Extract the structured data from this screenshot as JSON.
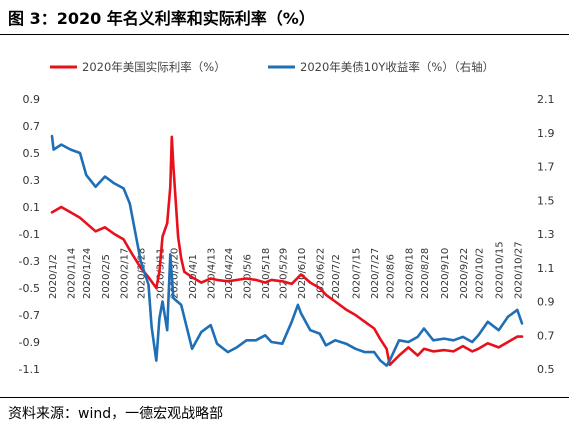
{
  "header": {
    "title": "图 3：2020 年名义利率和实际利率（%）"
  },
  "footer": {
    "source": "资料来源：wind，一德宏观战略部"
  },
  "colors": {
    "real_rate": "#e8101a",
    "nominal_rate": "#1f6fb6"
  },
  "chart_data": {
    "type": "line",
    "legend": {
      "placement": "top",
      "entries": [
        "2020年美国实际利率（%）",
        "2020年美债10Y收益率（%）（右轴）"
      ]
    },
    "x_ticks": [
      "2020/1/2",
      "2020/1/14",
      "2020/1/24",
      "2020/2/5",
      "2020/2/17",
      "2020/2/28",
      "2020/3/11",
      "2020/3/20",
      "2020/4/1",
      "2020/4/13",
      "2020/4/24",
      "2020/5/6",
      "2020/5/18",
      "2020/5/29",
      "2020/6/10",
      "2020/6/22",
      "2020/7/2",
      "2020/7/15",
      "2020/7/27",
      "2020/8/6",
      "2020/8/18",
      "2020/8/28",
      "2020/9/10",
      "2020/9/22",
      "2020/10/2",
      "2020/10/15",
      "2020/10/27"
    ],
    "y_left": {
      "ticks": [
        "0.9",
        "0.7",
        "0.5",
        "0.3",
        "0.1",
        "-0.1",
        "-0.3",
        "-0.5",
        "-0.7",
        "-0.9",
        "-1.1"
      ],
      "range": [
        -1.1,
        0.9
      ]
    },
    "y_right": {
      "ticks": [
        "2.1",
        "1.9",
        "1.7",
        "1.5",
        "1.3",
        "1.1",
        "0.9",
        "0.7",
        "0.5"
      ],
      "range": [
        0.5,
        2.1
      ]
    },
    "series": [
      {
        "name": "2020年美国实际利率（%）",
        "axis": "left",
        "x": [
          "2020/1/2",
          "2020/1/8",
          "2020/1/14",
          "2020/1/20",
          "2020/1/24",
          "2020/1/30",
          "2020/2/5",
          "2020/2/11",
          "2020/2/17",
          "2020/2/21",
          "2020/2/28",
          "2020/3/4",
          "2020/3/9",
          "2020/3/11",
          "2020/3/13",
          "2020/3/16",
          "2020/3/18",
          "2020/3/19",
          "2020/3/20",
          "2020/3/23",
          "2020/3/25",
          "2020/3/27",
          "2020/4/1",
          "2020/4/7",
          "2020/4/13",
          "2020/4/17",
          "2020/4/24",
          "2020/4/30",
          "2020/5/6",
          "2020/5/12",
          "2020/5/18",
          "2020/5/22",
          "2020/5/29",
          "2020/6/4",
          "2020/6/10",
          "2020/6/16",
          "2020/6/22",
          "2020/6/26",
          "2020/7/2",
          "2020/7/9",
          "2020/7/15",
          "2020/7/21",
          "2020/7/27",
          "2020/7/31",
          "2020/8/4",
          "2020/8/6",
          "2020/8/12",
          "2020/8/18",
          "2020/8/24",
          "2020/8/28",
          "2020/9/3",
          "2020/9/10",
          "2020/9/16",
          "2020/9/22",
          "2020/9/28",
          "2020/10/2",
          "2020/10/8",
          "2020/10/15",
          "2020/10/21",
          "2020/10/27",
          "2020/10/30"
        ],
        "values": [
          0.06,
          0.1,
          0.06,
          0.02,
          -0.02,
          -0.08,
          -0.05,
          -0.1,
          -0.14,
          -0.22,
          -0.35,
          -0.42,
          -0.5,
          -0.38,
          -0.12,
          -0.02,
          0.25,
          0.62,
          0.4,
          -0.12,
          -0.28,
          -0.38,
          -0.42,
          -0.46,
          -0.43,
          -0.44,
          -0.45,
          -0.44,
          -0.43,
          -0.44,
          -0.46,
          -0.44,
          -0.45,
          -0.47,
          -0.4,
          -0.46,
          -0.5,
          -0.55,
          -0.6,
          -0.66,
          -0.7,
          -0.75,
          -0.8,
          -0.88,
          -0.95,
          -1.07,
          -1.0,
          -0.94,
          -1.0,
          -0.95,
          -0.97,
          -0.96,
          -0.97,
          -0.93,
          -0.97,
          -0.95,
          -0.91,
          -0.94,
          -0.9,
          -0.86,
          -0.86
        ]
      },
      {
        "name": "2020年美债10Y收益率（%）（右轴）",
        "axis": "right",
        "x": [
          "2020/1/2",
          "2020/1/3",
          "2020/1/8",
          "2020/1/14",
          "2020/1/20",
          "2020/1/24",
          "2020/1/30",
          "2020/2/5",
          "2020/2/11",
          "2020/2/17",
          "2020/2/21",
          "2020/2/28",
          "2020/3/4",
          "2020/3/6",
          "2020/3/9",
          "2020/3/11",
          "2020/3/13",
          "2020/3/16",
          "2020/3/18",
          "2020/3/20",
          "2020/3/25",
          "2020/4/1",
          "2020/4/7",
          "2020/4/13",
          "2020/4/17",
          "2020/4/24",
          "2020/4/30",
          "2020/5/6",
          "2020/5/12",
          "2020/5/18",
          "2020/5/22",
          "2020/5/29",
          "2020/6/4",
          "2020/6/8",
          "2020/6/10",
          "2020/6/16",
          "2020/6/22",
          "2020/6/26",
          "2020/7/2",
          "2020/7/9",
          "2020/7/15",
          "2020/7/21",
          "2020/7/27",
          "2020/7/31",
          "2020/8/4",
          "2020/8/6",
          "2020/8/12",
          "2020/8/18",
          "2020/8/24",
          "2020/8/28",
          "2020/9/3",
          "2020/9/10",
          "2020/9/16",
          "2020/9/22",
          "2020/9/28",
          "2020/10/2",
          "2020/10/8",
          "2020/10/15",
          "2020/10/21",
          "2020/10/27",
          "2020/10/30"
        ],
        "values": [
          1.88,
          1.8,
          1.83,
          1.8,
          1.78,
          1.65,
          1.58,
          1.64,
          1.6,
          1.57,
          1.48,
          1.14,
          1.0,
          0.75,
          0.55,
          0.8,
          0.9,
          0.73,
          1.18,
          0.92,
          0.88,
          0.62,
          0.72,
          0.76,
          0.65,
          0.6,
          0.63,
          0.67,
          0.67,
          0.7,
          0.66,
          0.65,
          0.78,
          0.88,
          0.83,
          0.73,
          0.71,
          0.64,
          0.67,
          0.65,
          0.62,
          0.6,
          0.6,
          0.55,
          0.52,
          0.55,
          0.67,
          0.66,
          0.69,
          0.74,
          0.67,
          0.68,
          0.67,
          0.69,
          0.66,
          0.7,
          0.78,
          0.73,
          0.81,
          0.85,
          0.77
        ]
      }
    ]
  }
}
